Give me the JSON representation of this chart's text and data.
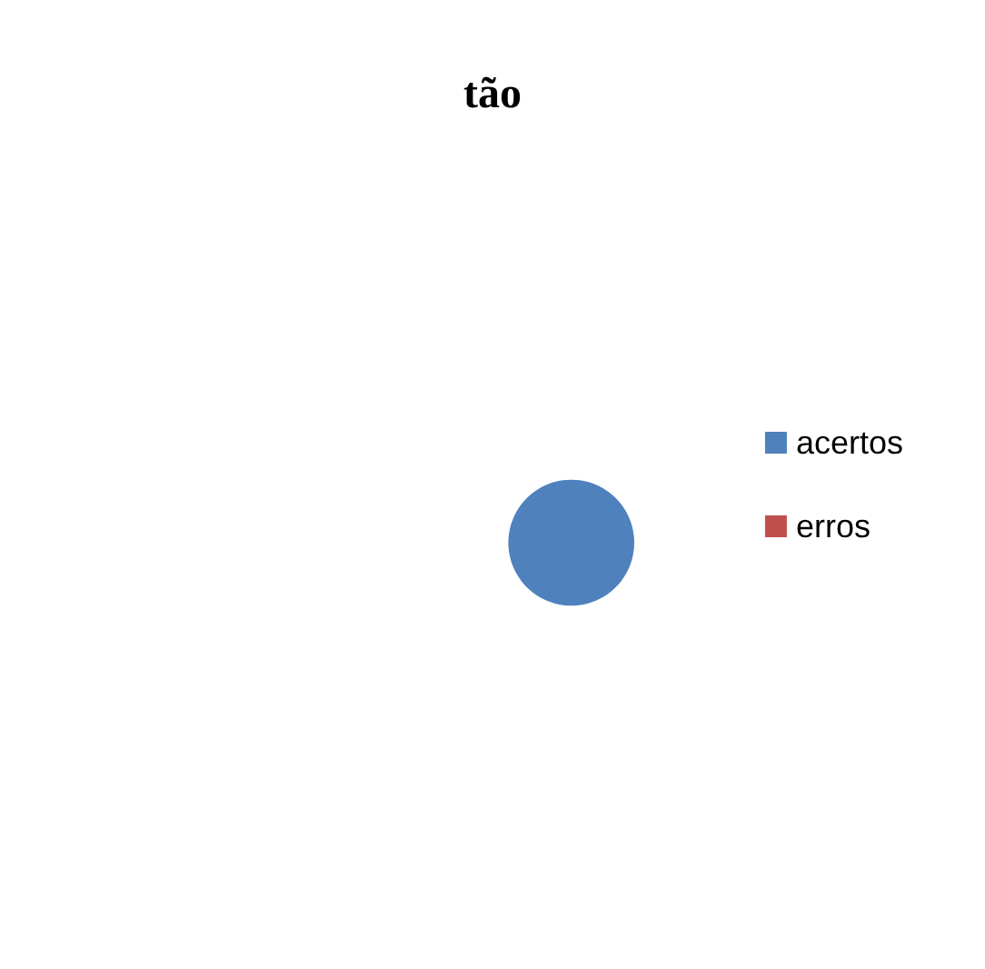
{
  "chart_data": {
    "type": "pie",
    "title": "tão",
    "categories": [
      "acertos",
      "erros"
    ],
    "values": [
      100,
      0
    ],
    "colors": [
      "#4f81bd",
      "#c0504d"
    ],
    "legend": "right"
  }
}
